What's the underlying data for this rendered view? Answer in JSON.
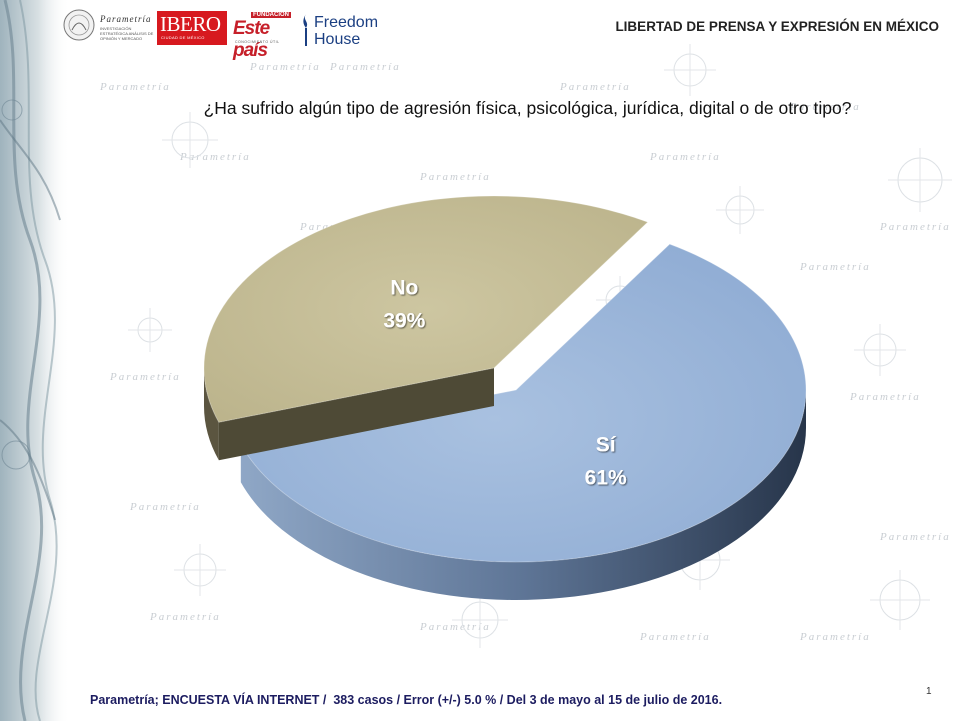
{
  "header": {
    "title": "LIBERTAD DE PRENSA Y EXPRESIÓN EN MÉXICO",
    "logos": {
      "parametria": {
        "name": "Parametría",
        "tagline": "INVESTIGACIÓN ESTRATÉGICA ANÁLISIS DE OPINIÓN Y MERCADO"
      },
      "ibero": {
        "name": "IBERO",
        "subtitle": "CIUDAD DE MÉXICO"
      },
      "este_pais": {
        "foundation": "FUNDACIÓN",
        "name": "Este país",
        "tagline": "CONOCIMIENTO ÚTIL"
      },
      "freedom_house": {
        "line1": "Freedom",
        "line2": "House"
      }
    }
  },
  "question": "¿Ha sufrido algún tipo de agresión física, psicológica, jurídica, digital o de otro tipo?",
  "chart_data": {
    "type": "pie",
    "title": "",
    "categories": [
      "Sí",
      "No"
    ],
    "values": [
      61,
      39
    ],
    "value_labels": [
      "61%",
      "39%"
    ],
    "colors": [
      "#95b3d7",
      "#c4bd97"
    ],
    "exploded": "No",
    "style": "3d",
    "legend": "none"
  },
  "footer": {
    "source": "Parametría; ENCUESTA VÍA INTERNET /  383 casos / Error (+/-) 5.0 % / Del 3 de mayo al 15 de julio de 2016.",
    "page_number": "1"
  },
  "background_watermark": "Parametría"
}
